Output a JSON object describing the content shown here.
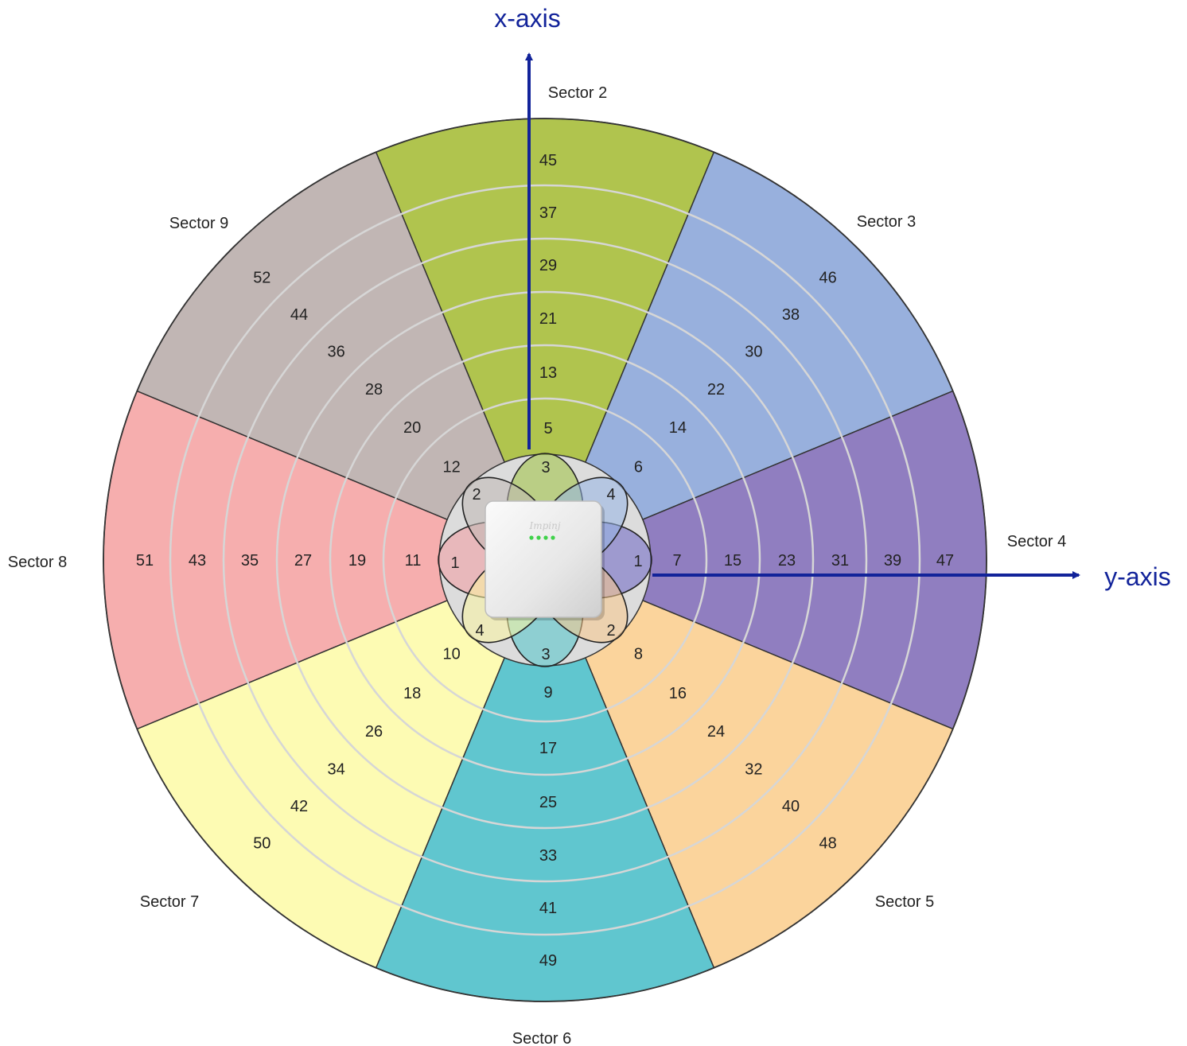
{
  "axes": {
    "x_label": "x-axis",
    "y_label": "y-axis",
    "color": "#12239a"
  },
  "device": {
    "brand": "Impinj",
    "led_color": "#3fd24a"
  },
  "sectors": [
    {
      "label": "Sector 2",
      "color": "#b0c44e",
      "zones": [
        "5",
        "13",
        "21",
        "29",
        "37",
        "45"
      ]
    },
    {
      "label": "Sector 3",
      "color": "#98b0dd",
      "zones": [
        "6",
        "14",
        "22",
        "30",
        "38",
        "46"
      ]
    },
    {
      "label": "Sector 4",
      "color": "#907ec0",
      "zones": [
        "7",
        "15",
        "23",
        "31",
        "39",
        "47"
      ]
    },
    {
      "label": "Sector 5",
      "color": "#fbd49c",
      "zones": [
        "8",
        "16",
        "24",
        "32",
        "40",
        "48"
      ]
    },
    {
      "label": "Sector 6",
      "color": "#60c6cf",
      "zones": [
        "9",
        "17",
        "25",
        "33",
        "41",
        "49"
      ]
    },
    {
      "label": "Sector 7",
      "color": "#fdfbb3",
      "zones": [
        "10",
        "18",
        "26",
        "34",
        "42",
        "50"
      ]
    },
    {
      "label": "Sector 8",
      "color": "#f6aeae",
      "zones": [
        "11",
        "19",
        "27",
        "35",
        "43",
        "51"
      ]
    },
    {
      "label": "Sector 9",
      "color": "#c1b6b4",
      "zones": [
        "12",
        "20",
        "28",
        "36",
        "44",
        "52"
      ]
    }
  ],
  "center_zones": {
    "top": "3",
    "bottom": "3",
    "left": "1",
    "right": "1",
    "upper_left": "2",
    "upper_right": "4",
    "lower_left": "4",
    "lower_right": "2"
  },
  "center_colors": {
    "top": "#9ec23e",
    "bottom": "#4fc5cb",
    "left": "#f39aa0",
    "right": "#6c64c4",
    "upper_right": "#95b4e6",
    "lower_right": "#f9c98a",
    "lower_left": "#fbf6a0",
    "upper_left": "#c0b8b4"
  }
}
